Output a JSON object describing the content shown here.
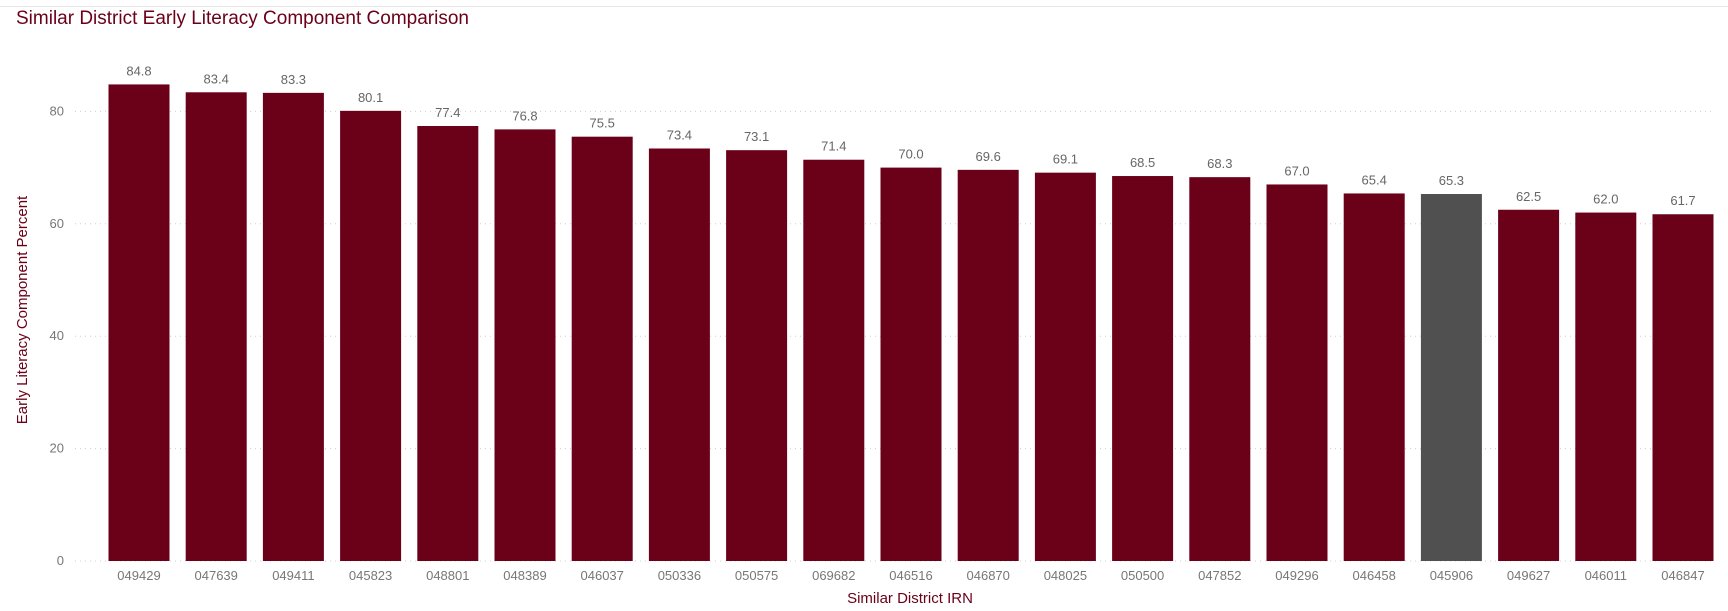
{
  "chart_data": {
    "type": "bar",
    "title": "Similar District Early Literacy Component Comparison",
    "xlabel": "Similar District IRN",
    "ylabel": "Early Literacy Component Percent",
    "ylim": [
      0,
      90
    ],
    "yticks": [
      0,
      20,
      40,
      60,
      80
    ],
    "grid": true,
    "categories": [
      "049429",
      "047639",
      "049411",
      "045823",
      "048801",
      "048389",
      "046037",
      "050336",
      "050575",
      "069682",
      "046516",
      "046870",
      "048025",
      "050500",
      "047852",
      "049296",
      "046458",
      "045906",
      "049627",
      "046011",
      "046847"
    ],
    "values": [
      84.8,
      83.4,
      83.3,
      80.1,
      77.4,
      76.8,
      75.5,
      73.4,
      73.1,
      71.4,
      70.0,
      69.6,
      69.1,
      68.5,
      68.3,
      67.0,
      65.4,
      65.3,
      62.5,
      62.0,
      61.7
    ],
    "data_labels": [
      "84.8",
      "83.4",
      "83.3",
      "80.1",
      "77.4",
      "76.8",
      "75.5",
      "73.4",
      "73.1",
      "71.4",
      "70.0",
      "69.6",
      "69.1",
      "68.5",
      "68.3",
      "67.0",
      "65.4",
      "65.3",
      "62.5",
      "62.0",
      "61.7"
    ],
    "colors": {
      "bar": "#6b0019",
      "highlight": "#505050",
      "highlight_category": "045906",
      "title": "#6b0019"
    }
  }
}
